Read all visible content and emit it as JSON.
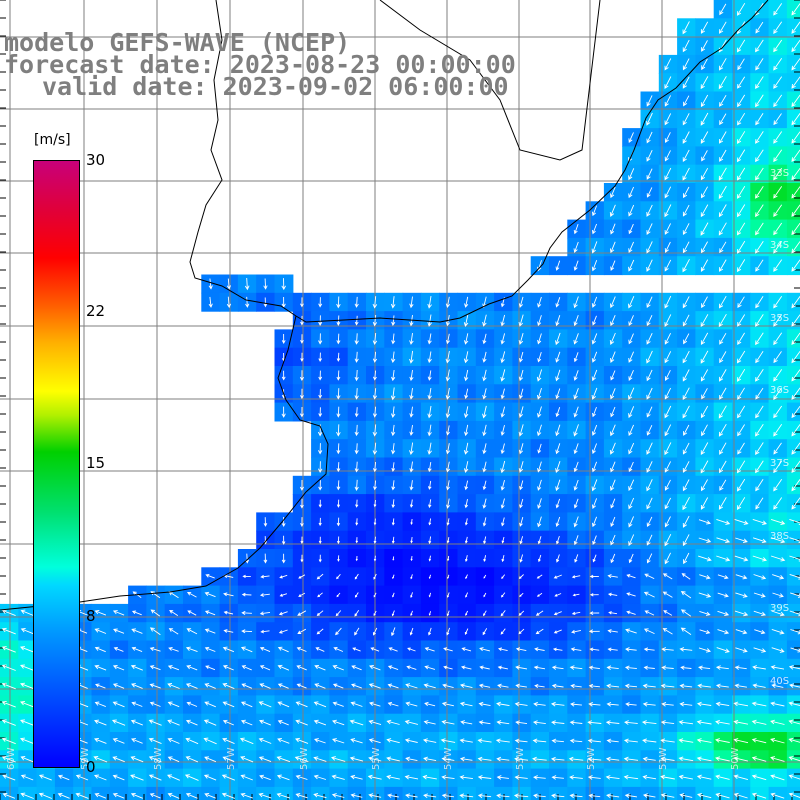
{
  "title": {
    "line1": "modelo GEFS-WAVE (NCEP)",
    "line2": "forecast date: 2023-08-23 00:00:00",
    "line3": "valid date: 2023-09-02 06:00:00"
  },
  "colorbar": {
    "unit": "[m/s]",
    "ticks": [
      {
        "label": "30",
        "value": 30
      },
      {
        "label": "22",
        "value": 22
      },
      {
        "label": "15",
        "value": 15
      },
      {
        "label": "8",
        "value": 8
      },
      {
        "label": "0",
        "value": 0
      }
    ]
  },
  "gridline_labels": {
    "right": [
      "33S",
      "34S",
      "35S",
      "36S",
      "37S",
      "38S",
      "39S",
      "40S"
    ],
    "bottom": [
      "60W",
      "59W",
      "58W",
      "57W",
      "56W",
      "55W",
      "54W",
      "53W",
      "52W",
      "51W",
      "50W"
    ]
  },
  "colors": {
    "land": "#ffffff",
    "coast": "#000000",
    "grid": "#7f7f7f",
    "arrows": "#ffffff",
    "title": "#7f7f7f"
  }
}
